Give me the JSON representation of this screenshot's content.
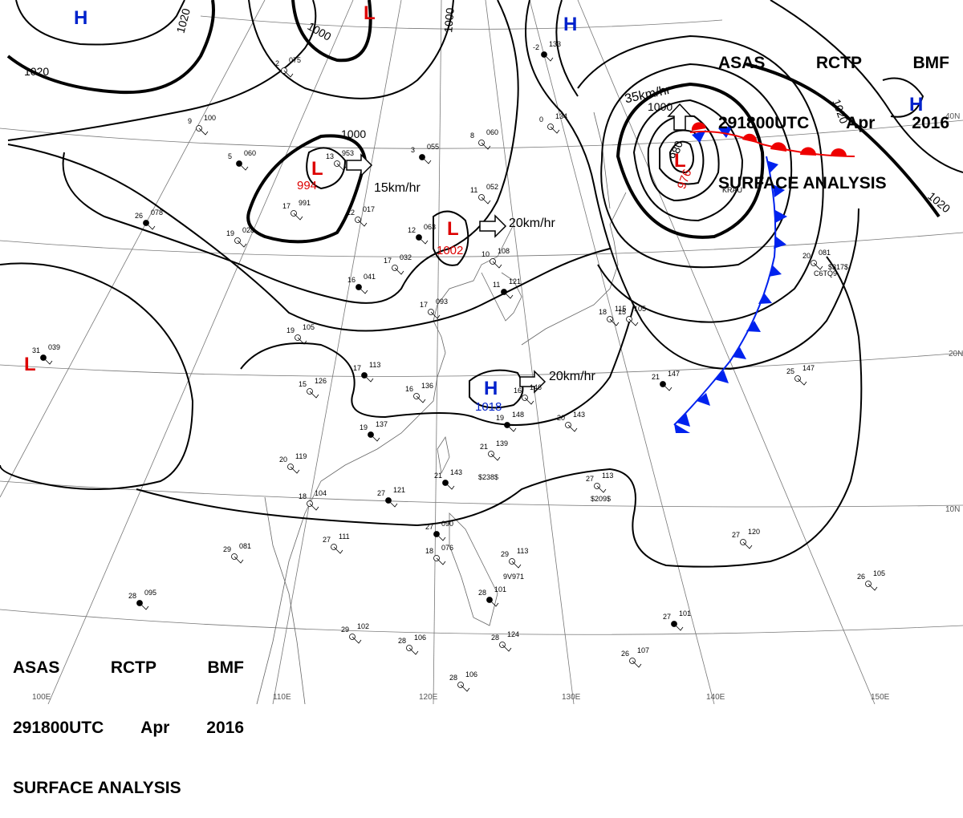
{
  "header": {
    "line1": [
      "ASAS",
      "RCTP",
      "BMF"
    ],
    "line2": [
      "291800UTC",
      "Apr",
      "2016"
    ],
    "line3": "SURFACE ANALYSIS"
  },
  "colors": {
    "high": "#0022cc",
    "low": "#dd0000",
    "cold_front": "#0022ee",
    "warm_front": "#ee0000",
    "isobar": "#000000"
  },
  "highs": [
    {
      "id": "h-nw",
      "letter": "H",
      "pressure": ""
    },
    {
      "id": "h-n",
      "letter": "H",
      "pressure": ""
    },
    {
      "id": "h-ne",
      "letter": "H",
      "pressure": ""
    },
    {
      "id": "h-center",
      "letter": "H",
      "pressure": "1018"
    }
  ],
  "lows": [
    {
      "id": "l-n",
      "letter": "L",
      "pressure": ""
    },
    {
      "id": "l-994",
      "letter": "L",
      "pressure": "994"
    },
    {
      "id": "l-1002",
      "letter": "L",
      "pressure": "1002"
    },
    {
      "id": "l-976",
      "letter": "L",
      "pressure": "976"
    },
    {
      "id": "l-w",
      "letter": "L",
      "pressure": ""
    }
  ],
  "isobar_labels": [
    "1020",
    "1020",
    "1000",
    "1000",
    "1000",
    "1000",
    "980",
    "1020",
    "1020"
  ],
  "motions": [
    "15km/hr",
    "20km/hr",
    "20km/hr",
    "35km/hr"
  ],
  "lat_labels": [
    "40N",
    "20N",
    "10N"
  ],
  "lon_labels": [
    "100E",
    "110E",
    "120E",
    "130E",
    "140E",
    "150E"
  ],
  "stations": [
    {
      "t": "26",
      "p": "078"
    },
    {
      "t": "19",
      "p": "028"
    },
    {
      "t": "17",
      "p": "032"
    },
    {
      "t": "16",
      "p": "041"
    },
    {
      "t": "17",
      "p": "093"
    },
    {
      "t": "19",
      "p": "105"
    },
    {
      "t": "17",
      "p": "113"
    },
    {
      "t": "15",
      "p": "126"
    },
    {
      "t": "16",
      "p": "136"
    },
    {
      "t": "19",
      "p": "137"
    },
    {
      "t": "20",
      "p": "119"
    },
    {
      "t": "18",
      "p": "104"
    },
    {
      "t": "27",
      "p": "121"
    },
    {
      "t": "27",
      "p": "111"
    },
    {
      "t": "29",
      "p": "081"
    },
    {
      "t": "28",
      "p": "095"
    },
    {
      "t": "29",
      "p": "102"
    },
    {
      "t": "28",
      "p": "106"
    },
    {
      "t": "27",
      "p": "090"
    },
    {
      "t": "18",
      "p": "076"
    },
    {
      "t": "29",
      "p": "113"
    },
    {
      "t": "28",
      "p": "101"
    },
    {
      "t": "28",
      "p": "124"
    },
    {
      "t": "28",
      "p": "106"
    },
    {
      "t": "21",
      "p": "143"
    },
    {
      "t": "21",
      "p": "139"
    },
    {
      "t": "20",
      "p": "143"
    },
    {
      "t": "19",
      "p": "148"
    },
    {
      "t": "16",
      "p": "146"
    },
    {
      "t": "25",
      "p": "147"
    },
    {
      "t": "21",
      "p": "147"
    },
    {
      "t": "27",
      "p": "113"
    },
    {
      "t": "27",
      "p": "120"
    },
    {
      "t": "27",
      "p": "101"
    },
    {
      "t": "26",
      "p": "107"
    },
    {
      "t": "26",
      "p": "105"
    },
    {
      "t": "12",
      "p": "063"
    },
    {
      "t": "11",
      "p": "052"
    },
    {
      "t": "10",
      "p": "108"
    },
    {
      "t": "11",
      "p": "121"
    },
    {
      "t": "17",
      "p": "991"
    },
    {
      "t": "12",
      "p": "017"
    },
    {
      "t": "5",
      "p": "060"
    },
    {
      "t": "13",
      "p": "953"
    },
    {
      "t": "-2",
      "p": "075"
    },
    {
      "t": "3",
      "p": "055"
    },
    {
      "t": "8",
      "p": "060"
    },
    {
      "t": "0",
      "p": "134"
    },
    {
      "t": "-2",
      "p": "133"
    },
    {
      "t": "9",
      "p": "100"
    },
    {
      "t": "20",
      "p": "081"
    },
    {
      "t": "31",
      "p": "039"
    },
    {
      "t": "18",
      "p": "115"
    },
    {
      "t": "15",
      "p": "105"
    }
  ],
  "station_codes": [
    "KRAU",
    "$317$",
    "$238$",
    "$209$",
    "C6TQ9",
    "9V971"
  ]
}
